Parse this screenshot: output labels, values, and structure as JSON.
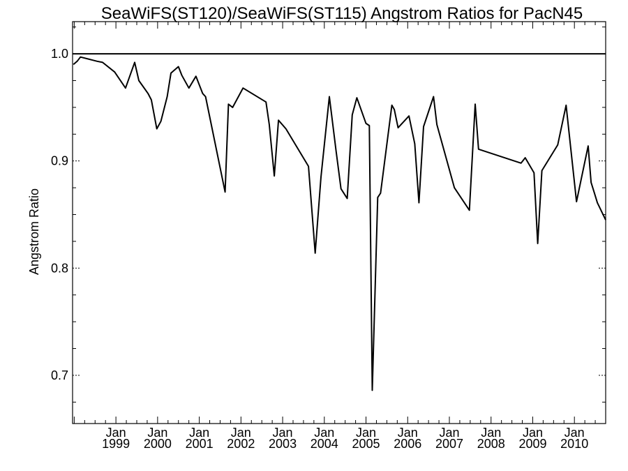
{
  "chart_data": {
    "type": "line",
    "title": "SeaWiFS(ST120)/SeaWiFS(ST115)  Angstrom Ratios for PacN45",
    "xlabel": "",
    "ylabel": "Angstrom Ratio",
    "xlim": [
      1997.96,
      2010.75
    ],
    "ylim": [
      0.655,
      1.03
    ],
    "grid": false,
    "y_ticks": [
      {
        "value": 0.7,
        "label": "0.7"
      },
      {
        "value": 0.8,
        "label": "0.8"
      },
      {
        "value": 0.9,
        "label": "0.9"
      },
      {
        "value": 1.0,
        "label": "1.0"
      }
    ],
    "x_ticks": [
      {
        "value": 1999,
        "month": "Jan",
        "year": "1999"
      },
      {
        "value": 2000,
        "month": "Jan",
        "year": "2000"
      },
      {
        "value": 2001,
        "month": "Jan",
        "year": "2001"
      },
      {
        "value": 2002,
        "month": "Jan",
        "year": "2002"
      },
      {
        "value": 2003,
        "month": "Jan",
        "year": "2003"
      },
      {
        "value": 2004,
        "month": "Jan",
        "year": "2004"
      },
      {
        "value": 2005,
        "month": "Jan",
        "year": "2005"
      },
      {
        "value": 2006,
        "month": "Jan",
        "year": "2006"
      },
      {
        "value": 2007,
        "month": "Jan",
        "year": "2007"
      },
      {
        "value": 2008,
        "month": "Jan",
        "year": "2008"
      },
      {
        "value": 2009,
        "month": "Jan",
        "year": "2009"
      },
      {
        "value": 2010,
        "month": "Jan",
        "year": "2010"
      }
    ],
    "reference_line": {
      "y": 1.0
    },
    "series": [
      {
        "x": [
          1997.98,
          1998.07,
          1998.15,
          1998.45,
          1998.55,
          1998.68,
          1998.97,
          1999.23,
          1999.45,
          1999.55,
          1999.77,
          1999.85,
          1999.98,
          2000.08,
          2000.23,
          2000.32,
          2000.5,
          2000.58,
          2000.75,
          2000.92,
          2001.08,
          2001.15,
          2001.62,
          2001.7,
          2001.8,
          2002.05,
          2002.6,
          2002.68,
          2002.8,
          2002.9,
          2003.08,
          2003.62,
          2003.78,
          2003.92,
          2004.12,
          2004.28,
          2004.4,
          2004.55,
          2004.67,
          2004.78,
          2005.0,
          2005.08,
          2005.15,
          2005.28,
          2005.35,
          2005.62,
          2005.68,
          2005.77,
          2006.03,
          2006.17,
          2006.27,
          2006.38,
          2006.62,
          2006.7,
          2007.12,
          2007.48,
          2007.62,
          2007.7,
          2008.72,
          2008.82,
          2009.03,
          2009.12,
          2009.22,
          2009.6,
          2009.8,
          2010.05,
          2010.33,
          2010.4,
          2010.48,
          2010.55,
          2010.75
        ],
        "values": [
          0.99,
          0.993,
          0.997,
          0.994,
          0.993,
          0.992,
          0.983,
          0.968,
          0.992,
          0.975,
          0.963,
          0.957,
          0.93,
          0.937,
          0.96,
          0.982,
          0.988,
          0.98,
          0.968,
          0.979,
          0.963,
          0.96,
          0.871,
          0.953,
          0.95,
          0.968,
          0.955,
          0.934,
          0.886,
          0.938,
          0.93,
          0.895,
          0.814,
          0.885,
          0.96,
          0.91,
          0.874,
          0.865,
          0.943,
          0.959,
          0.935,
          0.933,
          0.686,
          0.866,
          0.87,
          0.952,
          0.948,
          0.931,
          0.942,
          0.916,
          0.861,
          0.932,
          0.96,
          0.934,
          0.875,
          0.854,
          0.953,
          0.911,
          0.898,
          0.903,
          0.889,
          0.823,
          0.891,
          0.915,
          0.952,
          0.862,
          0.914,
          0.88,
          0.87,
          0.861,
          0.845
        ]
      }
    ]
  }
}
